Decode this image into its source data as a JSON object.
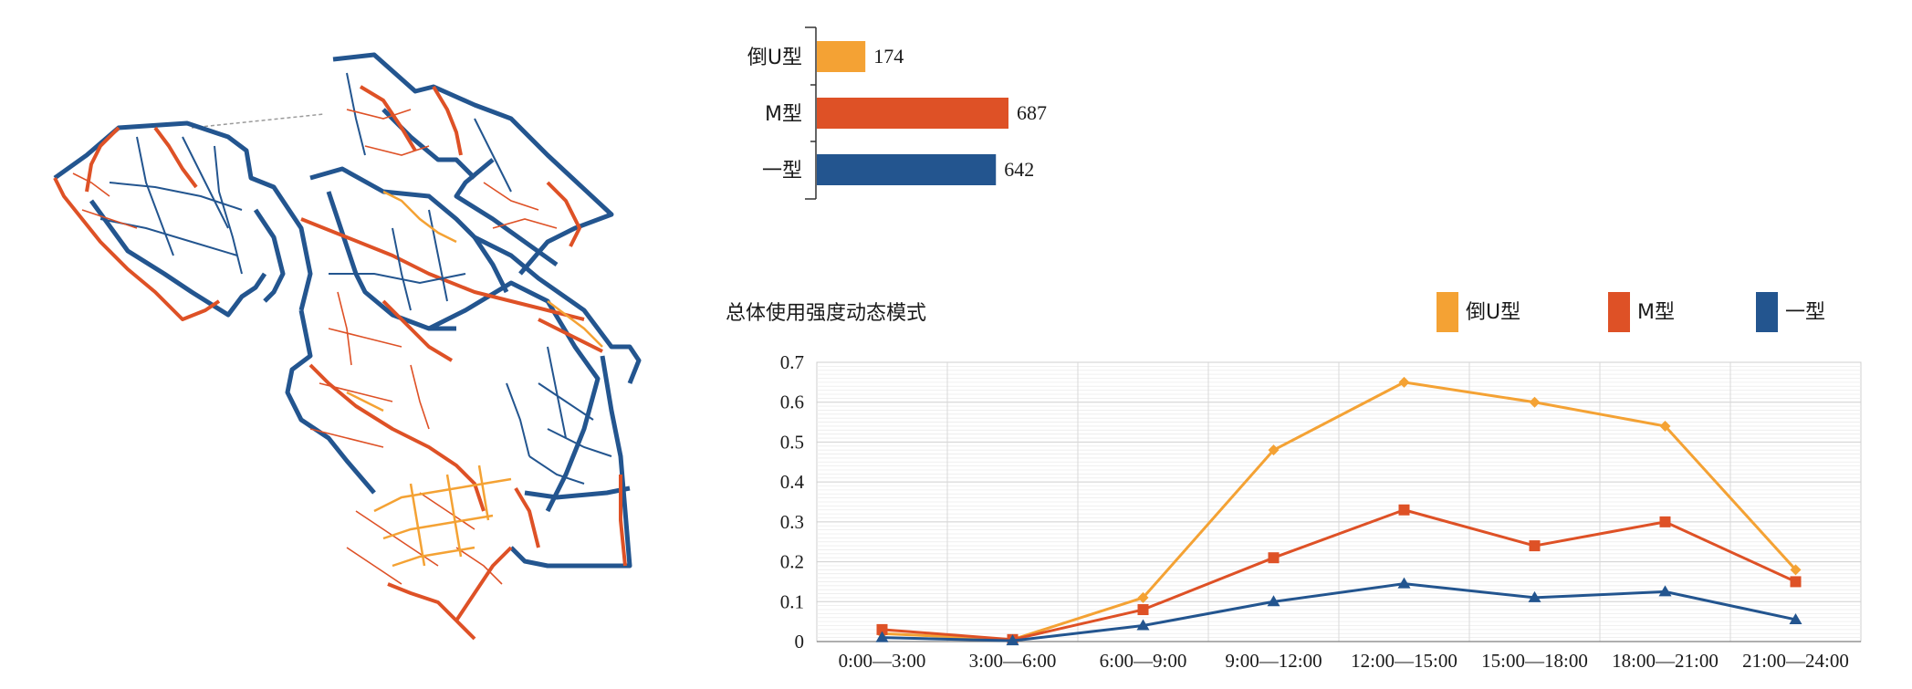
{
  "colors": {
    "inverted_u": "#F4A234",
    "m": "#DE5126",
    "flat": "#23558F",
    "grid": "#d9d9d9",
    "axis": "#333333"
  },
  "map": {
    "description_icon": "street-network-map"
  },
  "chart_data": [
    {
      "type": "bar",
      "orientation": "horizontal",
      "categories": [
        "倒U型",
        "M型",
        "一型"
      ],
      "values": [
        174,
        687,
        642
      ],
      "colors": [
        "#F4A234",
        "#DE5126",
        "#23558F"
      ],
      "data_labels": [
        "174",
        "687",
        "642"
      ]
    },
    {
      "type": "line",
      "title": "总体使用强度动态模式",
      "categories": [
        "0:00—3:00",
        "3:00—6:00",
        "6:00—9:00",
        "9:00—12:00",
        "12:00—15:00",
        "15:00—18:00",
        "18:00—21:00",
        "21:00—24:00"
      ],
      "ylim": [
        0,
        0.7
      ],
      "yticks": [
        "0",
        "0.1",
        "0.2",
        "0.3",
        "0.4",
        "0.5",
        "0.6",
        "0.7"
      ],
      "grid": true,
      "legend_position": "top-right",
      "series": [
        {
          "name": "倒U型",
          "color": "#F4A234",
          "marker": "diamond",
          "values": [
            0.02,
            0.005,
            0.11,
            0.48,
            0.65,
            0.6,
            0.54,
            0.18
          ]
        },
        {
          "name": "M型",
          "color": "#DE5126",
          "marker": "square",
          "values": [
            0.03,
            0.005,
            0.08,
            0.21,
            0.33,
            0.24,
            0.3,
            0.15
          ]
        },
        {
          "name": "一型",
          "color": "#23558F",
          "marker": "triangle",
          "values": [
            0.01,
            0.002,
            0.04,
            0.1,
            0.145,
            0.11,
            0.125,
            0.055
          ]
        }
      ]
    }
  ]
}
